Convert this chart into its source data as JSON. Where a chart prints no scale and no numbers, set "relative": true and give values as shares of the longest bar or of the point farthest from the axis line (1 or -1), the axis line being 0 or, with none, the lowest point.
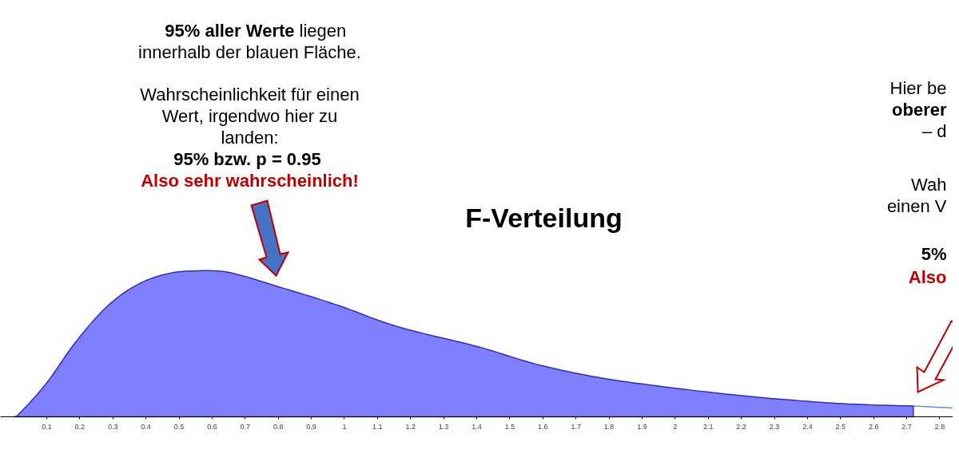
{
  "chart_data": {
    "type": "area",
    "title": "F-Verteilung",
    "relative": true,
    "xlim": [
      -0.04,
      2.84
    ],
    "xticks": [
      0.1,
      0.2,
      0.3,
      0.4,
      0.5,
      0.6,
      0.7,
      0.8,
      0.9,
      1,
      1.1,
      1.2,
      1.3,
      1.4,
      1.5,
      1.6,
      1.7,
      1.8,
      1.9,
      2,
      2.1,
      2.2,
      2.3,
      2.4,
      2.5,
      2.6,
      2.7,
      2.8
    ],
    "grid": false,
    "series": [
      {
        "color": "#8080ff",
        "x": [
          0.0,
          0.012,
          0.096,
          0.187,
          0.28,
          0.37,
          0.465,
          0.557,
          0.648,
          0.787,
          0.972,
          1.157,
          1.404,
          1.58,
          1.766,
          1.95,
          2.136,
          2.32,
          2.505,
          2.72
        ],
        "values": [
          0,
          0.01,
          0.22,
          0.51,
          0.75,
          0.9,
          0.98,
          1,
          0.99,
          0.9,
          0.77,
          0.62,
          0.48,
          0.36,
          0.27,
          0.21,
          0.16,
          0.12,
          0.09,
          0.074
        ]
      },
      {
        "type": "line",
        "color": "#5b8ee6",
        "x": [
          2.72,
          2.84
        ],
        "values": [
          0.074,
          0.06
        ]
      }
    ],
    "annotations": [
      "95% aller Werte",
      "liegen",
      "innerhalb der blauen Fläche.",
      "Wahrscheinlichkeit für einen",
      "Wert, irgendwo hier zu",
      "landen:",
      "95% bzw.  p = 0.95",
      "Also sehr wahrscheinlich!",
      "Hier be",
      "oberer",
      "– d",
      "Wah",
      "einen V",
      "5%",
      "Also"
    ]
  }
}
